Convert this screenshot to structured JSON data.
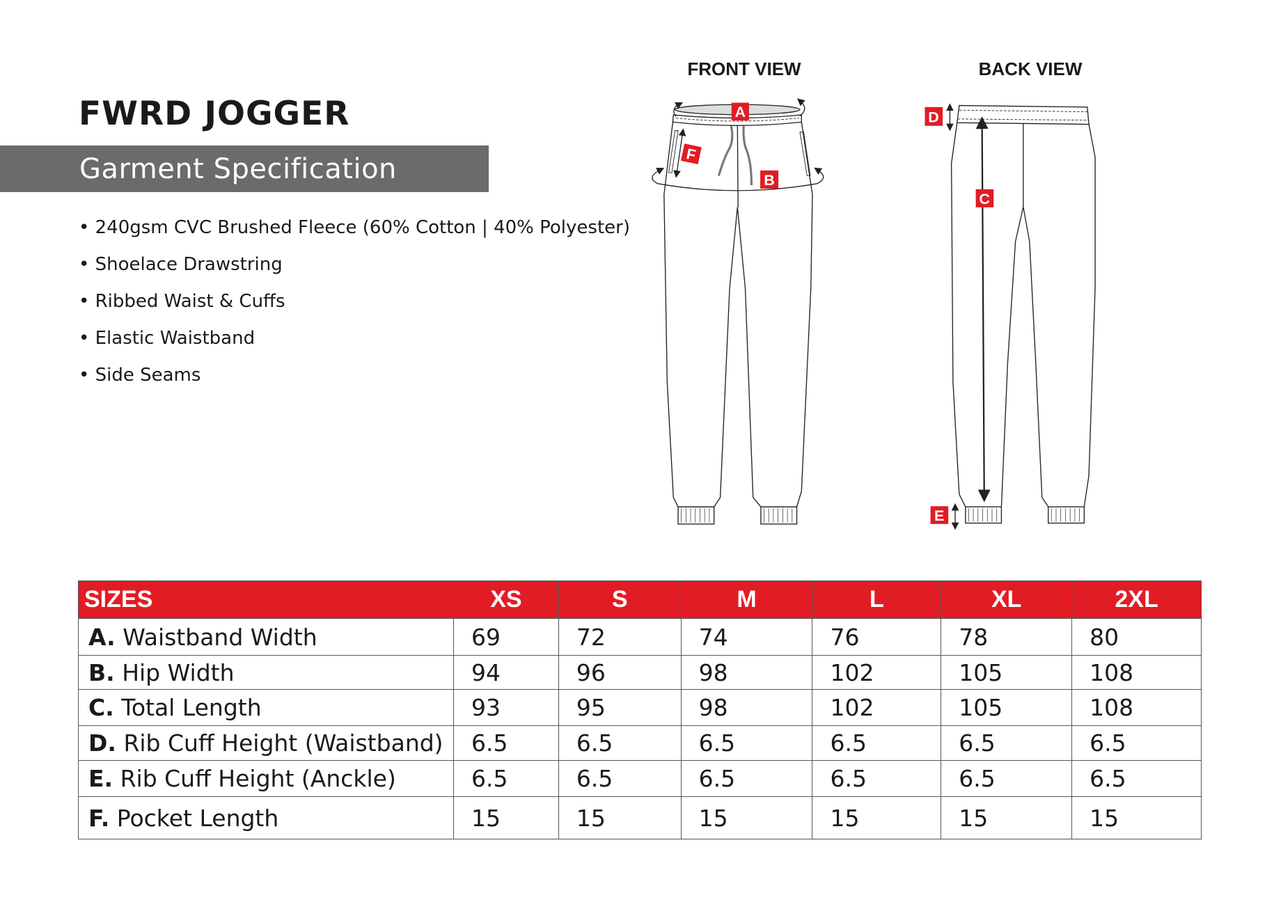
{
  "product": {
    "title": "FWRD JOGGER",
    "subtitle": "Garment Specification"
  },
  "features": [
    "240gsm CVC Brushed Fleece (60% Cotton | 40% Polyester)",
    "Shoelace Drawstring",
    "Ribbed Waist & Cuffs",
    "Elastic Waistband",
    "Side Seams"
  ],
  "views": {
    "front": "FRONT VIEW",
    "back": "BACK VIEW"
  },
  "markers": {
    "a": "A",
    "b": "B",
    "c": "C",
    "d": "D",
    "e": "E",
    "f": "F"
  },
  "colors": {
    "accent": "#e21c24",
    "banner": "#6b6b6b"
  },
  "table": {
    "headers": [
      "SIZES",
      "XS",
      "S",
      "M",
      "L",
      "XL",
      "2XL"
    ],
    "rows": [
      {
        "code": "A.",
        "name": "Waistband Width",
        "values": [
          "69",
          "72",
          "74",
          "76",
          "78",
          "80"
        ]
      },
      {
        "code": "B.",
        "name": "Hip Width",
        "values": [
          "94",
          "96",
          "98",
          "102",
          "105",
          "108"
        ]
      },
      {
        "code": "C.",
        "name": "Total Length",
        "values": [
          "93",
          "95",
          "98",
          "102",
          "105",
          "108"
        ]
      },
      {
        "code": "D.",
        "name": "Rib Cuff Height (Waistband)",
        "values": [
          "6.5",
          "6.5",
          "6.5",
          "6.5",
          "6.5",
          "6.5"
        ]
      },
      {
        "code": "E.",
        "name": "Rib Cuff Height (Anckle)",
        "values": [
          "6.5",
          "6.5",
          "6.5",
          "6.5",
          "6.5",
          "6.5"
        ]
      },
      {
        "code": "F.",
        "name": "Pocket Length",
        "values": [
          "15",
          "15",
          "15",
          "15",
          "15",
          "15"
        ]
      }
    ]
  }
}
